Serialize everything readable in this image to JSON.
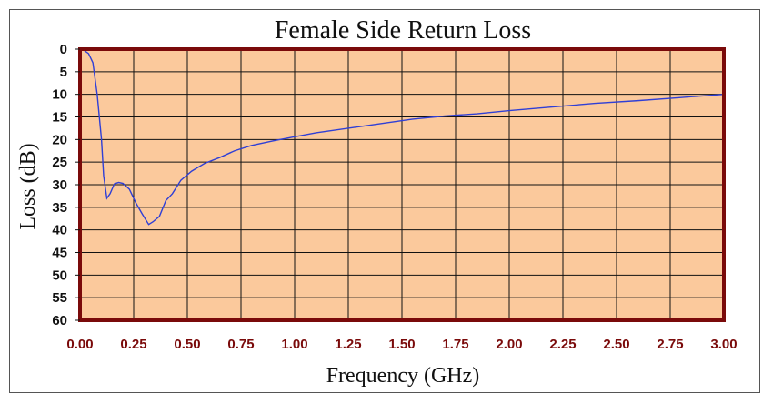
{
  "chart_data": {
    "type": "line",
    "title": "Female Side Return Loss",
    "xlabel": "Frequency (GHz)",
    "ylabel": "Loss (dB)",
    "xlim": [
      0,
      3
    ],
    "ylim": [
      0,
      60
    ],
    "y_inverted": true,
    "grid": true,
    "x_ticks": [
      "0.00",
      "0.25",
      "0.50",
      "0.75",
      "1.00",
      "1.25",
      "1.50",
      "1.75",
      "2.00",
      "2.25",
      "2.50",
      "2.75",
      "3.00"
    ],
    "y_ticks": [
      "0",
      "5",
      "10",
      "15",
      "20",
      "25",
      "30",
      "35",
      "40",
      "45",
      "50",
      "55",
      "60"
    ],
    "colors": {
      "plot_background": "#fbc99c",
      "plot_border": "#7a0a0a",
      "grid": "#111111",
      "line": "#2f3fd6"
    },
    "series": [
      {
        "name": "",
        "x": [
          0.0,
          0.02,
          0.04,
          0.06,
          0.08,
          0.1,
          0.11,
          0.125,
          0.14,
          0.16,
          0.18,
          0.2,
          0.23,
          0.26,
          0.29,
          0.32,
          0.34,
          0.37,
          0.4,
          0.43,
          0.47,
          0.52,
          0.58,
          0.65,
          0.72,
          0.8,
          0.9,
          1.0,
          1.1,
          1.25,
          1.4,
          1.55,
          1.7,
          1.85,
          2.0,
          2.2,
          2.4,
          2.6,
          2.8,
          3.0
        ],
        "y": [
          0,
          0.3,
          1,
          3,
          10,
          20,
          28,
          33,
          32,
          29.8,
          29.5,
          29.7,
          31,
          34,
          36.5,
          38.8,
          38.2,
          37,
          33.5,
          32,
          29,
          27,
          25.3,
          24,
          22.5,
          21.3,
          20.3,
          19.4,
          18.5,
          17.5,
          16.5,
          15.5,
          14.8,
          14.3,
          13.6,
          12.8,
          12.0,
          11.4,
          10.7,
          10.0
        ]
      }
    ]
  }
}
